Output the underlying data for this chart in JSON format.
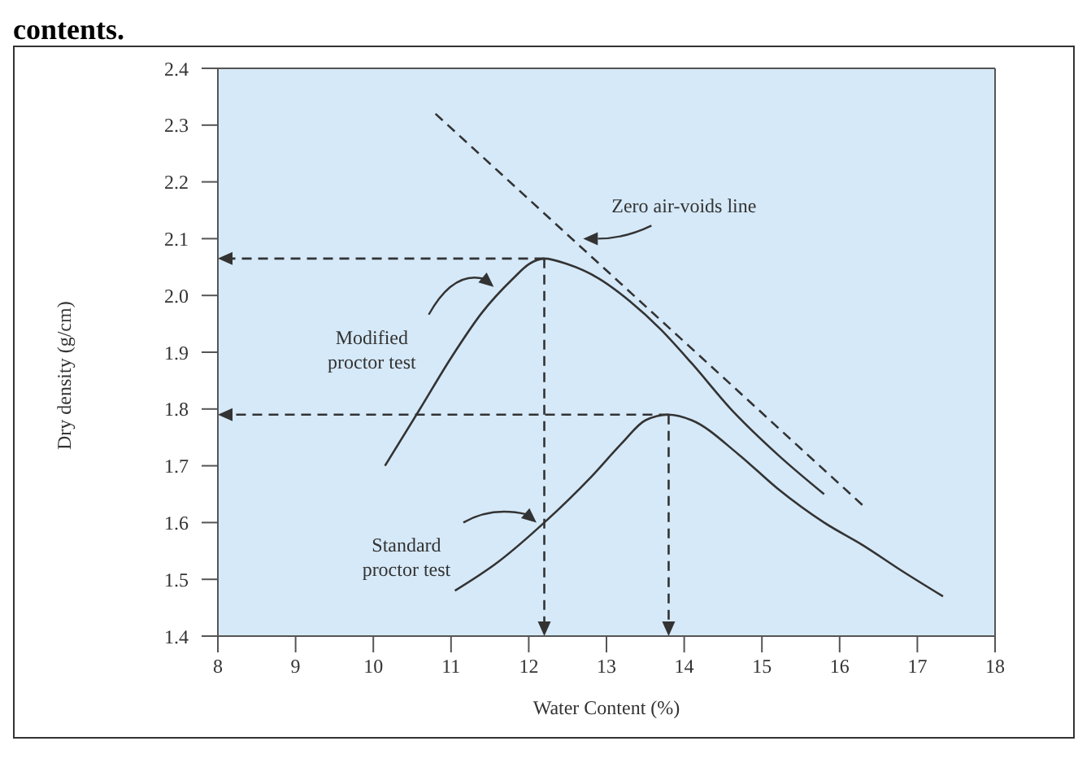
{
  "chart_data": {
    "type": "line",
    "xlabel": "Water Content (%)",
    "ylabel": "Dry density (g/cm)",
    "xlim": [
      8,
      18
    ],
    "xticks": [
      8,
      9,
      10,
      11,
      12,
      13,
      14,
      15,
      16,
      17,
      18
    ],
    "ylim": [
      1.4,
      2.4
    ],
    "yticks": [
      1.4,
      1.5,
      1.6,
      1.7,
      1.8,
      1.9,
      {
        "value": 2.0,
        "label": "2.0"
      },
      2.1,
      2.2,
      2.3,
      2.4
    ],
    "marker": "none",
    "series": [
      {
        "color": "#333333",
        "line_style": "solid",
        "x": [
          10.15,
          10.6,
          11.0,
          11.4,
          11.8,
          12.0,
          12.2,
          12.5,
          12.9,
          13.3,
          13.7,
          14.1,
          14.6,
          15.2,
          15.8
        ],
        "values": [
          1.7,
          1.8,
          1.89,
          1.97,
          2.03,
          2.055,
          2.065,
          2.055,
          2.03,
          1.99,
          1.94,
          1.88,
          1.8,
          1.72,
          1.65
        ]
      },
      {
        "color": "#333333",
        "line_style": "solid",
        "x": [
          11.05,
          11.6,
          12.2,
          12.8,
          13.2,
          13.5,
          13.8,
          14.1,
          14.7,
          15.2,
          15.8,
          16.3,
          16.8,
          17.33
        ],
        "values": [
          1.48,
          1.53,
          1.6,
          1.68,
          1.74,
          1.78,
          1.79,
          1.78,
          1.72,
          1.66,
          1.6,
          1.56,
          1.515,
          1.47
        ]
      },
      {
        "color": "#333333",
        "line_style": "dashed",
        "x": [
          10.8,
          16.3
        ],
        "values": [
          2.32,
          1.63
        ]
      }
    ],
    "annotations": [
      "contents.",
      {
        "text": "Zero air-voids line",
        "x": 12.7,
        "y": 2.1
      },
      {
        "text": "Modified\nproctor test",
        "x": 11.55,
        "y": 2.015
      },
      {
        "text": "Standard\nproctor test",
        "x": 12.1,
        "y": 1.6
      }
    ]
  }
}
